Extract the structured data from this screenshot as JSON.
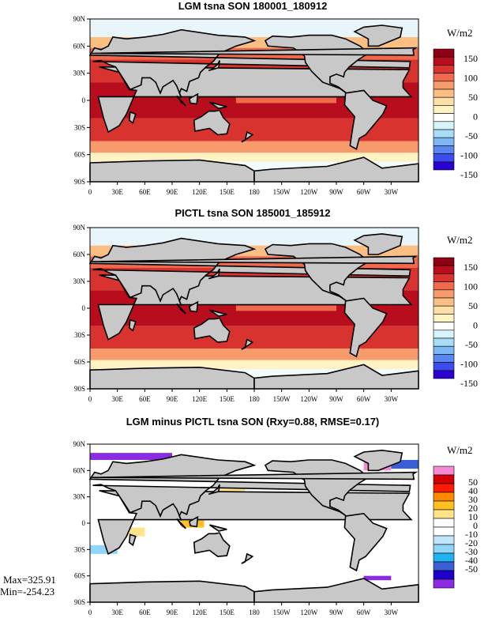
{
  "panels": [
    {
      "title": "LGM tsna SON 180001_180912",
      "units": "W/m2",
      "colorbar": {
        "colors": [
          "#2a00d0",
          "#3c4df0",
          "#5a86f0",
          "#7db8f5",
          "#a8ddf7",
          "#d6f3fa",
          "#ffffff",
          "#fff3c4",
          "#fde0a8",
          "#fbbf84",
          "#f79a6c",
          "#ef6a4c",
          "#d9332f",
          "#b80d1d",
          "#8f0213"
        ],
        "labels": [
          "150",
          "100",
          "50",
          "0",
          "-50",
          "-100",
          "-150"
        ]
      }
    },
    {
      "title": "PICTL tsna SON 185001_185912",
      "units": "W/m2",
      "colorbar": {
        "colors": [
          "#2a00d0",
          "#3c4df0",
          "#5a86f0",
          "#7db8f5",
          "#a8ddf7",
          "#d6f3fa",
          "#ffffff",
          "#fff3c4",
          "#fde0a8",
          "#fbbf84",
          "#f79a6c",
          "#ef6a4c",
          "#d9332f",
          "#b80d1d",
          "#8f0213"
        ],
        "labels": [
          "150",
          "100",
          "50",
          "0",
          "-50",
          "-100",
          "-150"
        ]
      }
    },
    {
      "title": "LGM minus PICTL tsna SON (Rxy=0.88, RMSE=0.17)",
      "units": "W/m2",
      "colorbar": {
        "colors": [
          "#8b2be2",
          "#1e00c8",
          "#3a5fd6",
          "#1fb4f0",
          "#8fd6fa",
          "#bfe6fb",
          "#ffffff",
          "#ffffff",
          "#ffe48a",
          "#ffc020",
          "#ff8a00",
          "#ff1a00",
          "#d20000",
          "#f58ad2"
        ],
        "labels": [
          "50",
          "40",
          "30",
          "20",
          "10",
          "0",
          "-10",
          "-20",
          "-30",
          "-40",
          "-50"
        ]
      }
    }
  ],
  "lat_labels": [
    "90N",
    "60N",
    "30N",
    "0",
    "30S",
    "60S",
    "90S"
  ],
  "lon_labels": [
    "0",
    "30E",
    "60E",
    "90E",
    "120E",
    "150E",
    "180",
    "150W",
    "120W",
    "90W",
    "60W",
    "30W"
  ],
  "stats": {
    "max": "Max=325.91",
    "min": "Min=-254.23"
  },
  "colors": {
    "land": "#c8c8c8",
    "ocean_warm": "#d9332f",
    "ocean_hot": "#b80d1d"
  }
}
